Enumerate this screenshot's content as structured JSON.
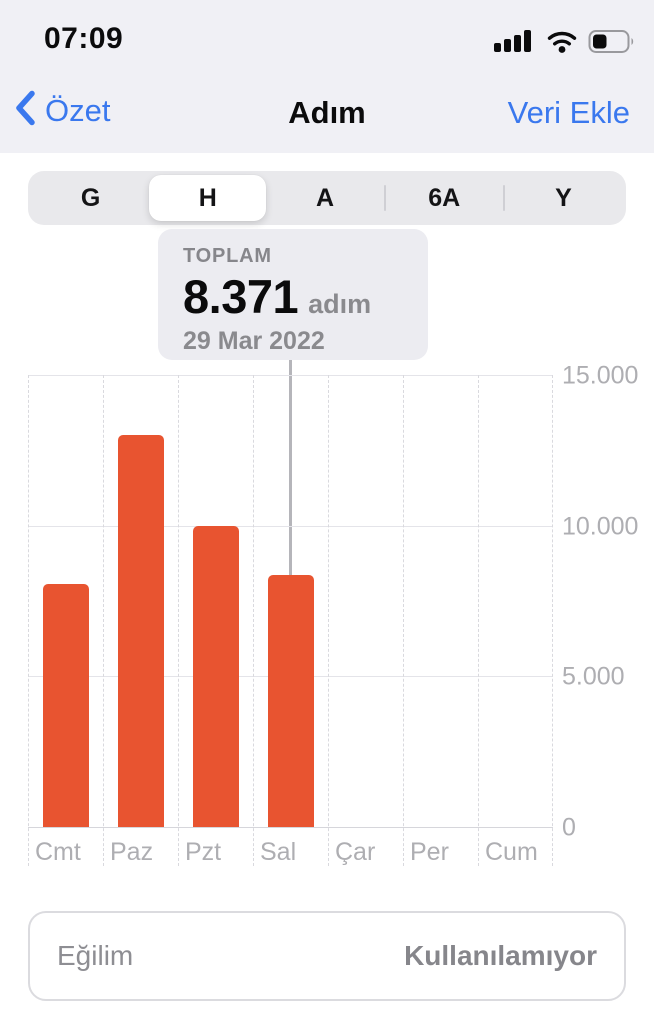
{
  "status_bar": {
    "time": "07:09",
    "signal_icon": "cellular-signal-4-bars",
    "wifi_icon": "wifi",
    "battery_icon": "battery-about-35-percent"
  },
  "nav": {
    "back_label": "Özet",
    "title": "Adım",
    "action_label": "Veri Ekle"
  },
  "segmented_control": {
    "options": [
      "G",
      "H",
      "A",
      "6A",
      "Y"
    ],
    "selected": "H",
    "selected_index": 1
  },
  "tooltip": {
    "label": "TOPLAM",
    "value": "8.371",
    "unit": "adım",
    "date": "29 Mar 2022"
  },
  "chart_data": {
    "type": "bar",
    "categories": [
      "Cmt",
      "Paz",
      "Pzt",
      "Sal",
      "Çar",
      "Per",
      "Cum"
    ],
    "values": [
      8050,
      13000,
      10000,
      8371,
      null,
      null,
      null
    ],
    "selected_index": 3,
    "selected_value": 8371,
    "title": "",
    "xlabel": "",
    "ylabel": "",
    "ylim": [
      0,
      15000
    ],
    "y_ticks": [
      {
        "value": 0,
        "label": "0"
      },
      {
        "value": 5000,
        "label": "5.000"
      },
      {
        "value": 10000,
        "label": "10.000"
      },
      {
        "value": 15000,
        "label": "15.000"
      }
    ],
    "grid": "on",
    "y_axis_position": "right",
    "bar_color": "#E85430"
  },
  "trend_card": {
    "label": "Eğilim",
    "value": "Kullanılamıyor"
  },
  "colors": {
    "accent_blue": "#3A78EE",
    "bar_orange": "#E85430",
    "header_background": "#F0F0F5",
    "tooltip_background": "#ECECF1",
    "axis_text": "#AEAEB2",
    "muted_text": "#8A8A8E"
  }
}
